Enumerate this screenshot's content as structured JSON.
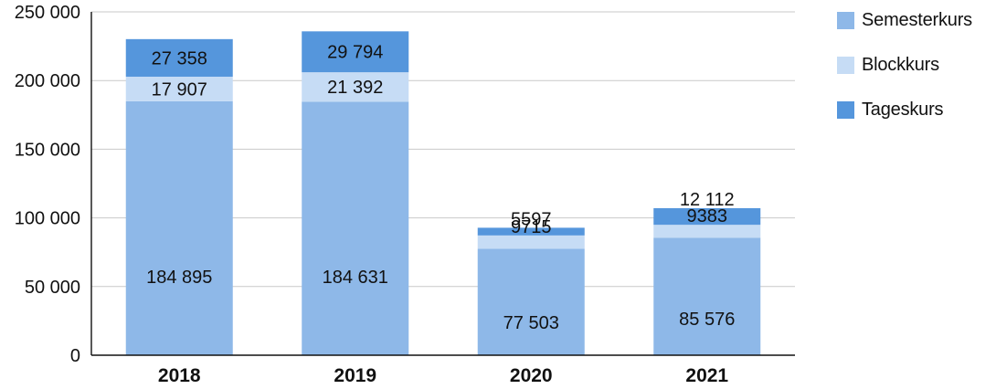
{
  "chart_data": {
    "type": "bar",
    "stacked": true,
    "title": "",
    "xlabel": "",
    "ylabel": "",
    "categories": [
      "2018",
      "2019",
      "2020",
      "2021"
    ],
    "series": [
      {
        "name": "Semesterkurs",
        "color": "#8eb8e8",
        "values": [
          184895,
          184631,
          77503,
          85576
        ],
        "labels": [
          "184 895",
          "184 631",
          "77 503",
          "85 576"
        ]
      },
      {
        "name": "Blockkurs",
        "color": "#c6dcf5",
        "values": [
          17907,
          21392,
          9715,
          9383
        ],
        "labels": [
          "17 907",
          "21 392",
          "9715",
          "9383"
        ]
      },
      {
        "name": "Tageskurs",
        "color": "#5596dc",
        "values": [
          27358,
          29794,
          5597,
          12112
        ],
        "labels": [
          "27 358",
          "29 794",
          "5597",
          "12 112"
        ]
      }
    ],
    "ylim": [
      0,
      250000
    ],
    "yticks": [
      0,
      50000,
      100000,
      150000,
      200000,
      250000
    ],
    "ytick_labels": [
      "0",
      "50 000",
      "100 000",
      "150 000",
      "200 000",
      "250 000"
    ],
    "grid": true,
    "legend_position": "right"
  }
}
